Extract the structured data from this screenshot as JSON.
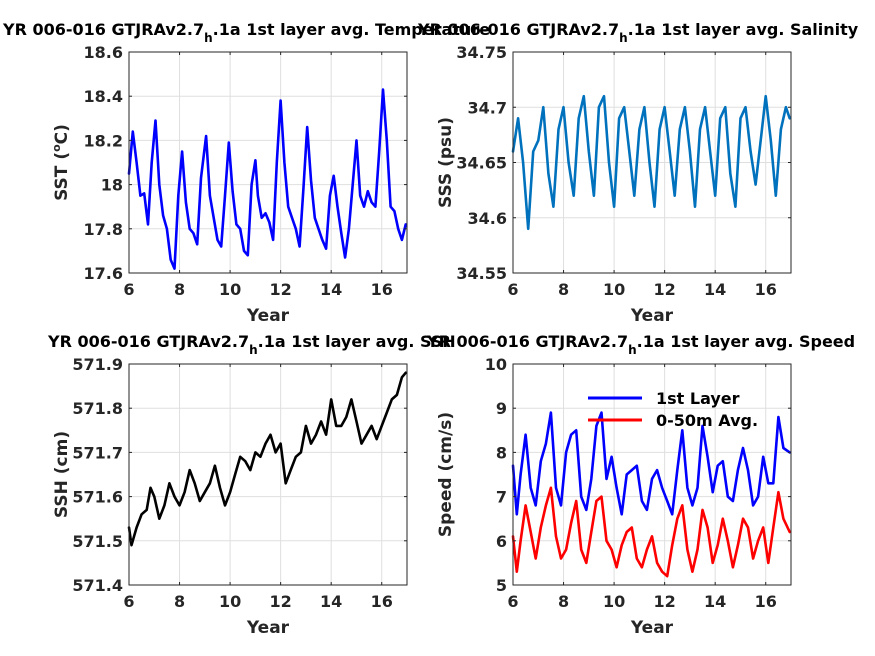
{
  "chart_data": [
    {
      "type": "line",
      "title": "YR 006-016 GTJRAv2.7",
      "title_subscript": "h",
      "title_suffix": ".1a 1st layer avg. Temperature",
      "xlabel": "Year",
      "ylabel": "SST (",
      "ylabel_sup": "o",
      "ylabel_end": "C)",
      "xlim": [
        6,
        17
      ],
      "ylim": [
        17.6,
        18.6
      ],
      "xticks": [
        6,
        8,
        10,
        12,
        14,
        16
      ],
      "xtick_labels": [
        "6",
        "8",
        "10",
        "12",
        "14",
        "16"
      ],
      "yticks": [
        17.6,
        17.8,
        18,
        18.2,
        18.4,
        18.6
      ],
      "ytick_labels": [
        "17.6",
        "17.8",
        "18",
        "18.2",
        "18.4",
        "18.6"
      ],
      "grid": true,
      "legend": null,
      "series": [
        {
          "color": "#0000ff",
          "x": [
            6.0,
            6.15,
            6.3,
            6.45,
            6.6,
            6.75,
            6.9,
            7.05,
            7.2,
            7.35,
            7.5,
            7.65,
            7.8,
            7.95,
            8.1,
            8.25,
            8.4,
            8.55,
            8.7,
            8.85,
            9.05,
            9.2,
            9.35,
            9.5,
            9.65,
            9.8,
            9.95,
            10.1,
            10.25,
            10.4,
            10.55,
            10.7,
            10.85,
            11.0,
            11.1,
            11.25,
            11.4,
            11.55,
            11.7,
            11.85,
            12.0,
            12.15,
            12.3,
            12.45,
            12.6,
            12.75,
            12.9,
            13.05,
            13.2,
            13.35,
            13.5,
            13.65,
            13.8,
            13.95,
            14.1,
            14.25,
            14.4,
            14.55,
            14.7,
            14.85,
            15.0,
            15.15,
            15.3,
            15.45,
            15.6,
            15.75,
            15.9,
            16.05,
            16.2,
            16.35,
            16.5,
            16.65,
            16.8,
            16.95
          ],
          "y": [
            18.05,
            18.24,
            18.1,
            17.95,
            17.96,
            17.82,
            18.1,
            18.29,
            18.0,
            17.86,
            17.8,
            17.66,
            17.62,
            17.95,
            18.15,
            17.92,
            17.8,
            17.78,
            17.73,
            18.03,
            18.22,
            17.95,
            17.85,
            17.75,
            17.72,
            17.95,
            18.19,
            17.97,
            17.82,
            17.8,
            17.7,
            17.68,
            18.0,
            18.11,
            17.95,
            17.85,
            17.87,
            17.83,
            17.75,
            18.1,
            18.38,
            18.1,
            17.9,
            17.85,
            17.8,
            17.72,
            17.98,
            18.26,
            18.02,
            17.85,
            17.8,
            17.75,
            17.71,
            17.95,
            18.04,
            17.9,
            17.78,
            17.67,
            17.8,
            18.0,
            18.2,
            17.95,
            17.9,
            17.97,
            17.92,
            17.9,
            18.15,
            18.43,
            18.2,
            17.9,
            17.88,
            17.8,
            17.75,
            17.82
          ]
        }
      ]
    },
    {
      "type": "line",
      "title": "YR 006-016 GTJRAv2.7",
      "title_subscript": "h",
      "title_suffix": ".1a 1st layer avg. Salinity",
      "xlabel": "Year",
      "ylabel": "SSS (psu)",
      "xlim": [
        6,
        17
      ],
      "ylim": [
        34.55,
        34.75
      ],
      "xticks": [
        6,
        8,
        10,
        12,
        14,
        16
      ],
      "xtick_labels": [
        "6",
        "8",
        "10",
        "12",
        "14",
        "16"
      ],
      "yticks": [
        34.55,
        34.6,
        34.65,
        34.7,
        34.75
      ],
      "ytick_labels": [
        "34.55",
        "34.6",
        "34.65",
        "34.7",
        "34.75"
      ],
      "grid": true,
      "legend": null,
      "series": [
        {
          "color": "#0072bd",
          "x": [
            6.0,
            6.2,
            6.4,
            6.6,
            6.8,
            7.0,
            7.2,
            7.4,
            7.6,
            7.8,
            8.0,
            8.2,
            8.4,
            8.6,
            8.8,
            9.0,
            9.2,
            9.4,
            9.6,
            9.8,
            10.0,
            10.2,
            10.4,
            10.6,
            10.8,
            11.0,
            11.2,
            11.4,
            11.6,
            11.8,
            12.0,
            12.2,
            12.4,
            12.6,
            12.8,
            13.0,
            13.2,
            13.4,
            13.6,
            13.8,
            14.0,
            14.2,
            14.4,
            14.6,
            14.8,
            15.0,
            15.2,
            15.4,
            15.6,
            15.8,
            16.0,
            16.2,
            16.4,
            16.6,
            16.8,
            16.95
          ],
          "y": [
            34.66,
            34.69,
            34.65,
            34.59,
            34.66,
            34.67,
            34.7,
            34.64,
            34.61,
            34.68,
            34.7,
            34.65,
            34.62,
            34.69,
            34.71,
            34.66,
            34.62,
            34.7,
            34.71,
            34.65,
            34.61,
            34.69,
            34.7,
            34.66,
            34.62,
            34.68,
            34.7,
            34.65,
            34.61,
            34.68,
            34.7,
            34.66,
            34.62,
            34.68,
            34.7,
            34.66,
            34.61,
            34.68,
            34.7,
            34.66,
            34.62,
            34.69,
            34.7,
            34.64,
            34.61,
            34.69,
            34.7,
            34.66,
            34.63,
            34.67,
            34.71,
            34.67,
            34.62,
            34.68,
            34.7,
            34.69
          ]
        }
      ]
    },
    {
      "type": "line",
      "title": "YR 006-016 GTJRAv2.7",
      "title_subscript": "h",
      "title_suffix": ".1a 1st layer avg. SSH",
      "xlabel": "Year",
      "ylabel": "SSH (cm)",
      "xlim": [
        6,
        17
      ],
      "ylim": [
        571.4,
        571.9
      ],
      "xticks": [
        6,
        8,
        10,
        12,
        14,
        16
      ],
      "xtick_labels": [
        "6",
        "8",
        "10",
        "12",
        "14",
        "16"
      ],
      "yticks": [
        571.4,
        571.5,
        571.6,
        571.7,
        571.8,
        571.9
      ],
      "ytick_labels": [
        "571.4",
        "571.5",
        "571.6",
        "571.7",
        "571.8",
        "571.9"
      ],
      "grid": true,
      "legend": null,
      "series": [
        {
          "color": "#000000",
          "x": [
            6.0,
            6.1,
            6.3,
            6.5,
            6.7,
            6.85,
            7.0,
            7.2,
            7.4,
            7.6,
            7.8,
            8.0,
            8.2,
            8.4,
            8.6,
            8.8,
            9.0,
            9.2,
            9.4,
            9.6,
            9.8,
            10.0,
            10.2,
            10.4,
            10.6,
            10.8,
            11.0,
            11.2,
            11.4,
            11.6,
            11.8,
            12.0,
            12.2,
            12.4,
            12.6,
            12.8,
            13.0,
            13.2,
            13.4,
            13.6,
            13.8,
            14.0,
            14.2,
            14.4,
            14.6,
            14.8,
            15.0,
            15.2,
            15.4,
            15.6,
            15.8,
            16.0,
            16.2,
            16.4,
            16.6,
            16.8,
            16.95
          ],
          "y": [
            571.53,
            571.49,
            571.53,
            571.56,
            571.57,
            571.62,
            571.6,
            571.55,
            571.58,
            571.63,
            571.6,
            571.58,
            571.61,
            571.66,
            571.63,
            571.59,
            571.61,
            571.63,
            571.67,
            571.62,
            571.58,
            571.61,
            571.65,
            571.69,
            571.68,
            571.66,
            571.7,
            571.69,
            571.72,
            571.74,
            571.7,
            571.72,
            571.63,
            571.66,
            571.69,
            571.7,
            571.76,
            571.72,
            571.74,
            571.77,
            571.74,
            571.82,
            571.76,
            571.76,
            571.78,
            571.82,
            571.77,
            571.72,
            571.74,
            571.76,
            571.73,
            571.76,
            571.79,
            571.82,
            571.83,
            571.87,
            571.88
          ]
        }
      ]
    },
    {
      "type": "line",
      "title": "YR 006-016 GTJRAv2.7",
      "title_subscript": "h",
      "title_suffix": ".1a 1st layer avg. Speed",
      "xlabel": "Year",
      "ylabel": "Speed (cm/s)",
      "xlim": [
        6,
        17
      ],
      "ylim": [
        5,
        10
      ],
      "xticks": [
        6,
        8,
        10,
        12,
        14,
        16
      ],
      "xtick_labels": [
        "6",
        "8",
        "10",
        "12",
        "14",
        "16"
      ],
      "yticks": [
        5,
        6,
        7,
        8,
        9,
        10
      ],
      "ytick_labels": [
        "5",
        "6",
        "7",
        "8",
        "9",
        "10"
      ],
      "grid": true,
      "legend": "top-center",
      "series": [
        {
          "name": "1st Layer",
          "color": "#0000ff",
          "x": [
            6.0,
            6.15,
            6.3,
            6.5,
            6.7,
            6.9,
            7.1,
            7.3,
            7.5,
            7.7,
            7.9,
            8.1,
            8.3,
            8.5,
            8.7,
            8.9,
            9.1,
            9.3,
            9.5,
            9.7,
            9.9,
            10.1,
            10.3,
            10.5,
            10.7,
            10.9,
            11.1,
            11.3,
            11.5,
            11.7,
            11.9,
            12.1,
            12.3,
            12.5,
            12.7,
            12.9,
            13.1,
            13.3,
            13.5,
            13.7,
            13.9,
            14.1,
            14.3,
            14.5,
            14.7,
            14.9,
            15.1,
            15.3,
            15.5,
            15.7,
            15.9,
            16.1,
            16.3,
            16.5,
            16.7,
            16.95
          ],
          "y": [
            7.7,
            6.6,
            7.5,
            8.4,
            7.2,
            6.8,
            7.8,
            8.2,
            8.9,
            7.2,
            6.8,
            8.0,
            8.4,
            8.5,
            7.0,
            6.7,
            7.4,
            8.6,
            8.9,
            7.4,
            7.9,
            7.2,
            6.6,
            7.5,
            7.6,
            7.7,
            6.9,
            6.7,
            7.4,
            7.6,
            7.2,
            6.9,
            6.6,
            7.6,
            8.5,
            7.2,
            6.8,
            7.2,
            8.6,
            7.9,
            7.1,
            7.7,
            7.8,
            7.0,
            6.9,
            7.6,
            8.1,
            7.6,
            6.8,
            7.0,
            7.9,
            7.3,
            7.3,
            8.8,
            8.1,
            8.0
          ]
        },
        {
          "name": "0-50m Avg.",
          "color": "#ff0000",
          "x": [
            6.0,
            6.15,
            6.3,
            6.5,
            6.7,
            6.9,
            7.1,
            7.3,
            7.5,
            7.7,
            7.9,
            8.1,
            8.3,
            8.5,
            8.7,
            8.9,
            9.1,
            9.3,
            9.5,
            9.7,
            9.9,
            10.1,
            10.3,
            10.5,
            10.7,
            10.9,
            11.1,
            11.3,
            11.5,
            11.7,
            11.9,
            12.1,
            12.3,
            12.5,
            12.7,
            12.9,
            13.1,
            13.3,
            13.5,
            13.7,
            13.9,
            14.1,
            14.3,
            14.5,
            14.7,
            14.9,
            15.1,
            15.3,
            15.5,
            15.7,
            15.9,
            16.1,
            16.3,
            16.5,
            16.7,
            16.95
          ],
          "y": [
            6.1,
            5.3,
            6.0,
            6.8,
            6.2,
            5.6,
            6.3,
            6.8,
            7.2,
            6.1,
            5.6,
            5.8,
            6.4,
            6.9,
            5.8,
            5.5,
            6.2,
            6.9,
            7.0,
            6.0,
            5.8,
            5.4,
            5.9,
            6.2,
            6.3,
            5.6,
            5.4,
            5.8,
            6.1,
            5.5,
            5.3,
            5.2,
            5.9,
            6.5,
            6.8,
            5.8,
            5.3,
            5.8,
            6.7,
            6.3,
            5.5,
            5.9,
            6.5,
            6.0,
            5.4,
            5.9,
            6.5,
            6.3,
            5.6,
            6.0,
            6.3,
            5.5,
            6.3,
            7.1,
            6.5,
            6.2
          ]
        }
      ]
    }
  ]
}
